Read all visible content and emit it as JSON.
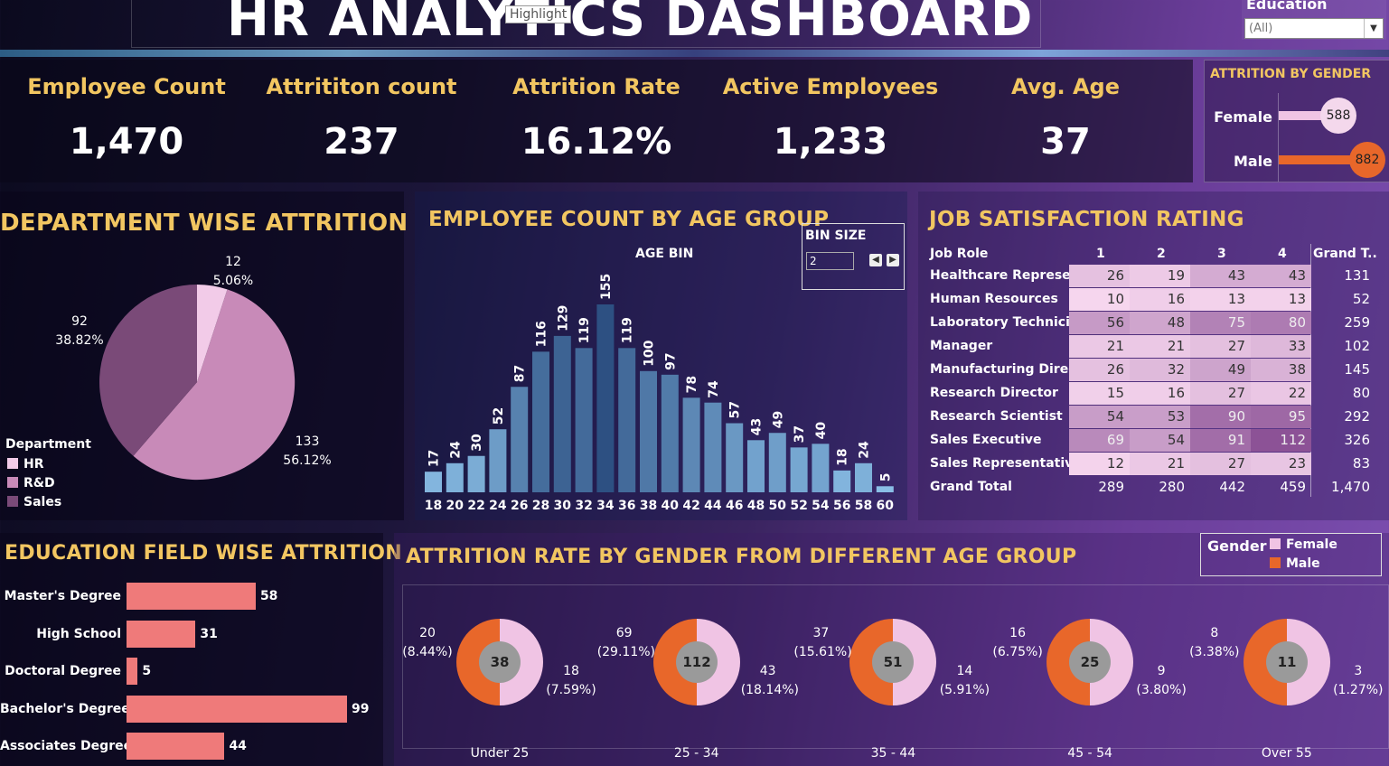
{
  "header": {
    "title": "HR ANALYTICS DASHBOARD",
    "tooltip": "Highlight"
  },
  "filter": {
    "label": "Education",
    "value": "(All)"
  },
  "kpis": [
    {
      "label": "Employee Count",
      "value": "1,470"
    },
    {
      "label": "Attrititon count",
      "value": "237"
    },
    {
      "label": "Attrition Rate",
      "value": "16.12%"
    },
    {
      "label": "Active Employees",
      "value": "1,233"
    },
    {
      "label": "Avg. Age",
      "value": "37"
    }
  ],
  "gender_attrition": {
    "title": "ATTRITION BY GENDER",
    "rows": [
      {
        "label": "Female",
        "value": "588",
        "color": "#f0c4e4"
      },
      {
        "label": "Male",
        "value": "882",
        "color": "#e8672a"
      }
    ]
  },
  "department": {
    "title": "DEPARTMENT WISE ATTRITION",
    "legend_title": "Department",
    "legend": [
      {
        "label": "HR",
        "color": "#f2cbe8"
      },
      {
        "label": "R&D",
        "color": "#c88ab8"
      },
      {
        "label": "Sales",
        "color": "#7a4a78"
      }
    ],
    "labels": [
      {
        "count": "12",
        "pct": "5.06%"
      },
      {
        "count": "133",
        "pct": "56.12%"
      },
      {
        "count": "92",
        "pct": "38.82%"
      }
    ]
  },
  "age_group": {
    "title": "EMPLOYEE COUNT BY AGE GROUP",
    "axis_label": "AGE BIN",
    "bin_label": "BIN SIZE",
    "bin_value": "2"
  },
  "chart_data": {
    "type": "bar",
    "title": "EMPLOYEE COUNT BY AGE GROUP",
    "xlabel": "AGE BIN",
    "categories": [
      "18",
      "20",
      "22",
      "24",
      "26",
      "28",
      "30",
      "32",
      "34",
      "36",
      "38",
      "40",
      "42",
      "44",
      "46",
      "48",
      "50",
      "52",
      "54",
      "56",
      "58",
      "60"
    ],
    "values": [
      17,
      24,
      30,
      52,
      87,
      116,
      129,
      119,
      155,
      119,
      100,
      97,
      78,
      74,
      57,
      43,
      49,
      37,
      40,
      18,
      24,
      5
    ],
    "ylim": [
      0,
      160
    ]
  },
  "job_satisfaction": {
    "title": "JOB SATISFACTION RATING",
    "headers": [
      "Job Role",
      "1",
      "2",
      "3",
      "4",
      "Grand T.."
    ],
    "rows": [
      {
        "role": "Healthcare Represe..",
        "v": [
          "26",
          "19",
          "43",
          "43"
        ],
        "total": "131"
      },
      {
        "role": "Human Resources",
        "v": [
          "10",
          "16",
          "13",
          "13"
        ],
        "total": "52"
      },
      {
        "role": "Laboratory Technici..",
        "v": [
          "56",
          "48",
          "75",
          "80"
        ],
        "total": "259"
      },
      {
        "role": "Manager",
        "v": [
          "21",
          "21",
          "27",
          "33"
        ],
        "total": "102"
      },
      {
        "role": "Manufacturing Direc..",
        "v": [
          "26",
          "32",
          "49",
          "38"
        ],
        "total": "145"
      },
      {
        "role": "Research Director",
        "v": [
          "15",
          "16",
          "27",
          "22"
        ],
        "total": "80"
      },
      {
        "role": "Research Scientist",
        "v": [
          "54",
          "53",
          "90",
          "95"
        ],
        "total": "292"
      },
      {
        "role": "Sales Executive",
        "v": [
          "69",
          "54",
          "91",
          "112"
        ],
        "total": "326"
      },
      {
        "role": "Sales Representative",
        "v": [
          "12",
          "21",
          "27",
          "23"
        ],
        "total": "83"
      }
    ],
    "grand_total": {
      "role": "Grand Total",
      "v": [
        "289",
        "280",
        "442",
        "459"
      ],
      "total": "1,470"
    }
  },
  "education": {
    "title": "EDUCATION FIELD WISE ATTRITION",
    "rows": [
      {
        "label": "Master's Degree",
        "value": 58
      },
      {
        "label": "High School",
        "value": 31
      },
      {
        "label": "Doctoral Degree",
        "value": 5
      },
      {
        "label": "Bachelor's Degree",
        "value": 99
      },
      {
        "label": "Associates Degree",
        "value": 44
      }
    ]
  },
  "age_gender": {
    "title": "ATTRITION RATE BY GENDER FROM DIFFERENT AGE GROUP",
    "legend_title": "Gender",
    "legend": [
      {
        "label": "Female",
        "color": "#f0c4e4"
      },
      {
        "label": "Male",
        "color": "#e8672a"
      }
    ],
    "groups": [
      {
        "name": "Under 25",
        "total": "38",
        "male": "20",
        "male_pct": "(8.44%)",
        "female": "18",
        "female_pct": "(7.59%)"
      },
      {
        "name": "25 - 34",
        "total": "112",
        "male": "69",
        "male_pct": "(29.11%)",
        "female": "43",
        "female_pct": "(18.14%)"
      },
      {
        "name": "35 - 44",
        "total": "51",
        "male": "37",
        "male_pct": "(15.61%)",
        "female": "14",
        "female_pct": "(5.91%)"
      },
      {
        "name": "45 - 54",
        "total": "25",
        "male": "16",
        "male_pct": "(6.75%)",
        "female": "9",
        "female_pct": "(3.80%)"
      },
      {
        "name": "Over 55",
        "total": "11",
        "male": "8",
        "male_pct": "(3.38%)",
        "female": "3",
        "female_pct": "(1.27%)"
      }
    ]
  }
}
